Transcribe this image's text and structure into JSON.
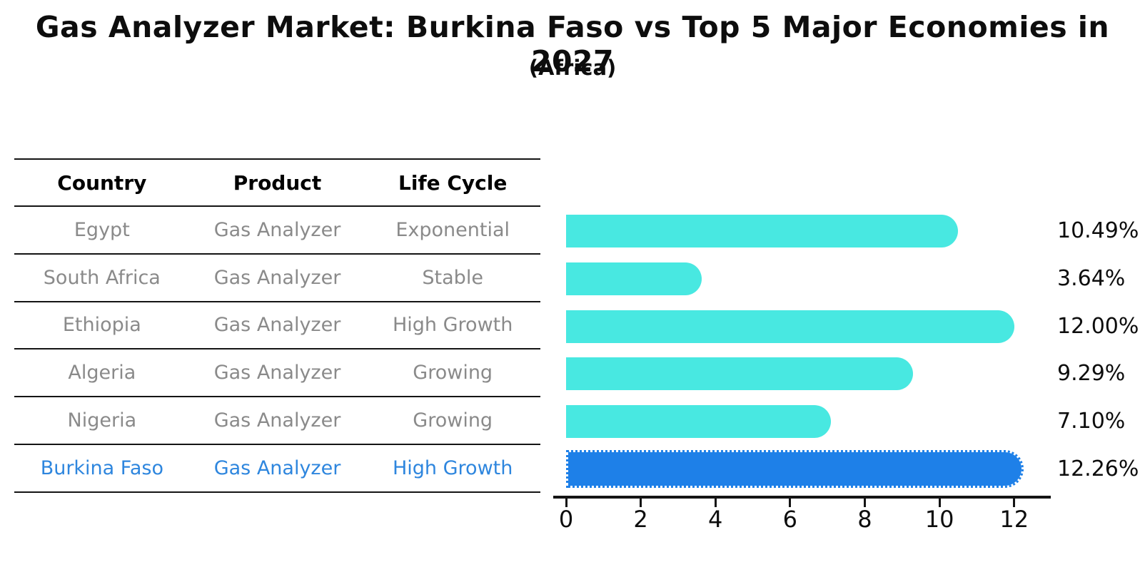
{
  "title": "Gas Analyzer Market: Burkina Faso vs Top 5 Major Economies in 2027",
  "subtitle": "(Africa)",
  "table": {
    "columns": [
      "Country",
      "Product",
      "Life Cycle"
    ],
    "rows": [
      {
        "country": "Egypt",
        "product": "Gas Analyzer",
        "life_cycle": "Exponential",
        "highlight": false
      },
      {
        "country": "South Africa",
        "product": "Gas Analyzer",
        "life_cycle": "Stable",
        "highlight": false
      },
      {
        "country": "Ethiopia",
        "product": "Gas Analyzer",
        "life_cycle": "High Growth",
        "highlight": false
      },
      {
        "country": "Algeria",
        "product": "Gas Analyzer",
        "life_cycle": "Growing",
        "highlight": false
      },
      {
        "country": "Nigeria",
        "product": "Gas Analyzer",
        "life_cycle": "Growing",
        "highlight": false
      },
      {
        "country": "Burkina Faso",
        "product": "Gas Analyzer",
        "life_cycle": "High Growth",
        "highlight": true
      }
    ]
  },
  "chart_data": {
    "type": "bar",
    "orientation": "horizontal",
    "title": "Gas Analyzer Market: Burkina Faso vs Top 5 Major Economies in 2027",
    "subtitle": "(Africa)",
    "categories": [
      "Egypt",
      "South Africa",
      "Ethiopia",
      "Algeria",
      "Nigeria",
      "Burkina Faso"
    ],
    "values": [
      10.49,
      3.64,
      12.0,
      9.29,
      7.1,
      12.26
    ],
    "value_labels": [
      "10.49%",
      "3.64%",
      "12.00%",
      "9.29%",
      "7.10%",
      "12.26%"
    ],
    "xlabel": "",
    "ylabel": "",
    "xticks": [
      0,
      2,
      4,
      6,
      8,
      10,
      12
    ],
    "xlim": [
      0,
      13
    ],
    "grid": false,
    "legend": false,
    "highlight_index": 5,
    "colors": {
      "bar": "#48e8e1",
      "highlight_bar": "#1e80e8",
      "highlight_text": "#2e86de",
      "row_text": "#8a8a8a",
      "header_text": "#000000",
      "axis": "#141414"
    }
  }
}
